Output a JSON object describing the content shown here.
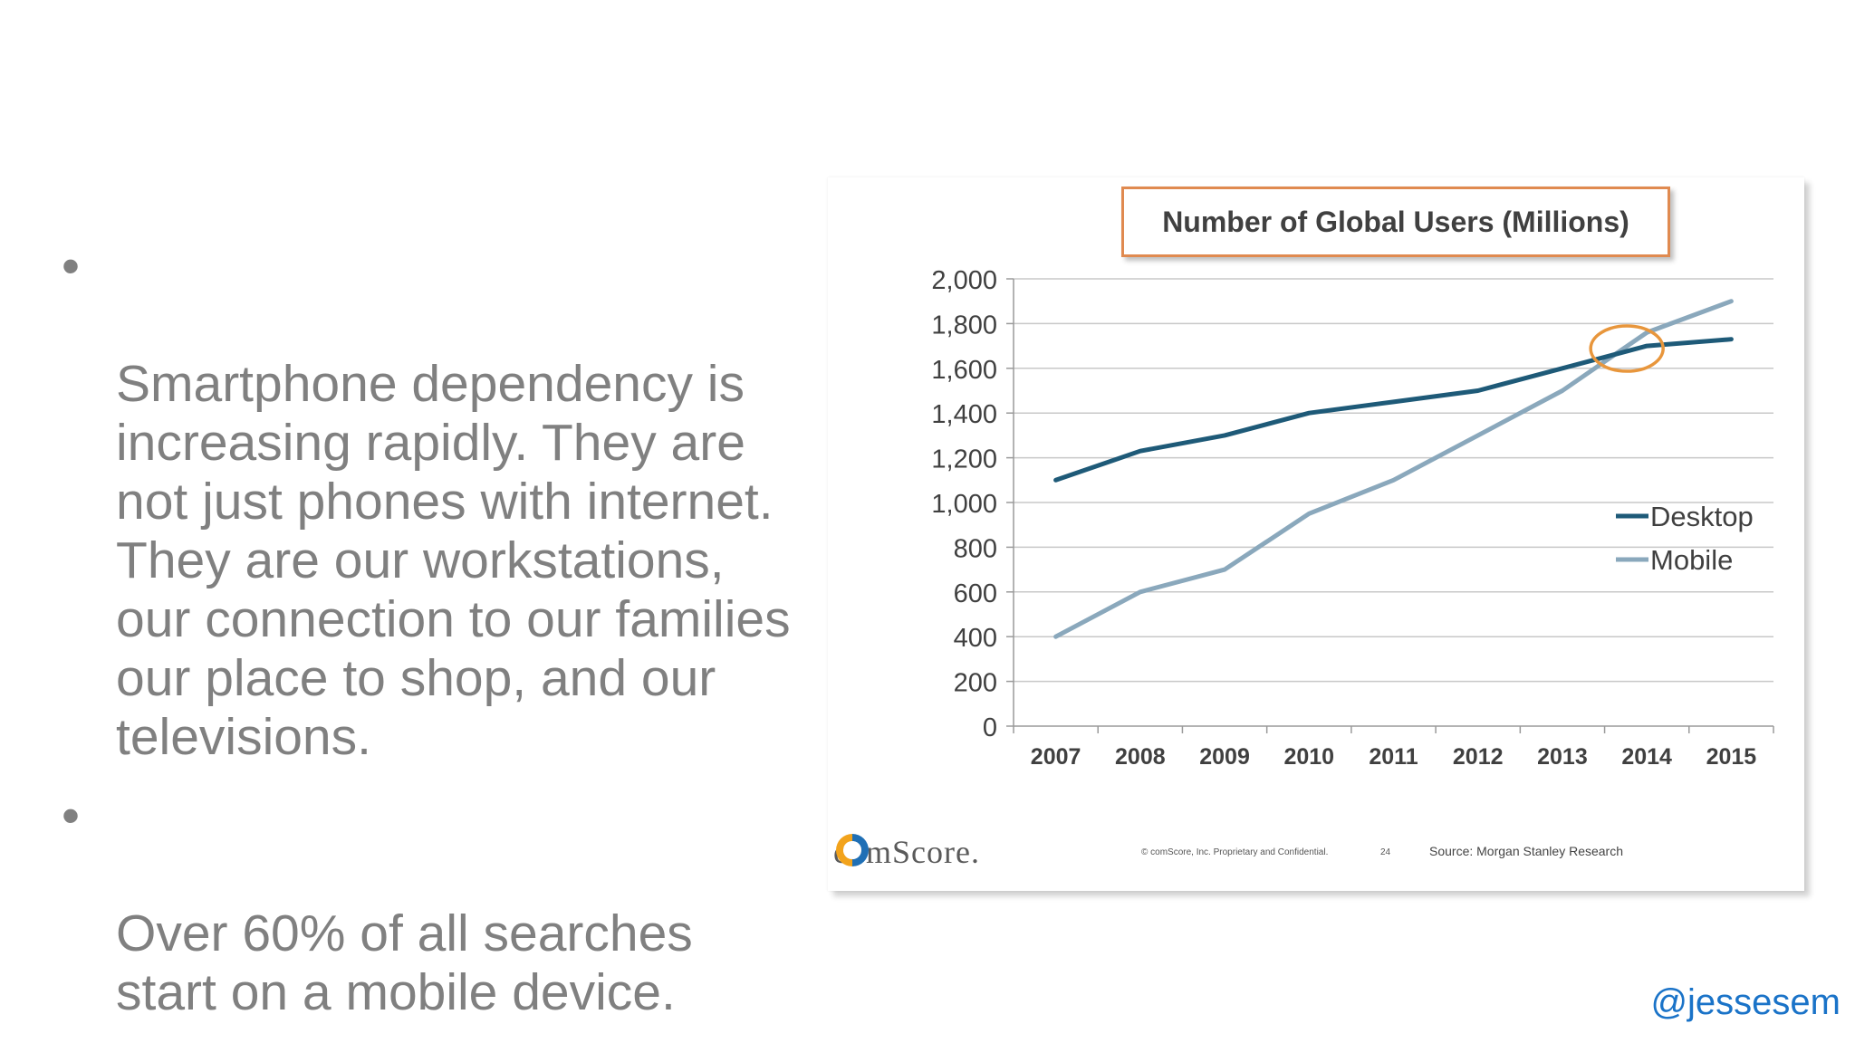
{
  "bullets": [
    "Smartphone dependency is\nincreasing rapidly. They are\nnot just phones with internet.\nThey are our workstations,\nour connection to our families\nour place to shop, and our\ntelevisions.",
    "Over 60% of all searches\nstart on a mobile device."
  ],
  "bullet_symbol": "•",
  "chart_data": {
    "type": "line",
    "title": "Number of Global Users (Millions)",
    "x": [
      "2007",
      "2008",
      "2009",
      "2010",
      "2011",
      "2012",
      "2013",
      "2014",
      "2015"
    ],
    "ylim": [
      0,
      2000
    ],
    "yticks": [
      "0",
      "200",
      "400",
      "600",
      "800",
      "1,000",
      "1,200",
      "1,400",
      "1,600",
      "1,800",
      "2,000"
    ],
    "ytick_values": [
      0,
      200,
      400,
      600,
      800,
      1000,
      1200,
      1400,
      1600,
      1800,
      2000
    ],
    "grid": true,
    "legend_placement": "right",
    "series": [
      {
        "name": "Desktop",
        "color": "#1e5a78",
        "values": [
          1100,
          1230,
          1300,
          1400,
          1450,
          1500,
          1600,
          1700,
          1730
        ]
      },
      {
        "name": "Mobile",
        "color": "#8aa8bc",
        "values": [
          400,
          600,
          700,
          950,
          1100,
          1300,
          1500,
          1760,
          1900
        ]
      }
    ],
    "annotation": {
      "type": "circle",
      "x": "2014",
      "y": 1680,
      "color": "#e8963c"
    }
  },
  "footer": {
    "logo_text": "comScore.",
    "copyright": "© comScore, Inc.  Proprietary and Confidential.",
    "page_number": "24",
    "source": "Source: Morgan Stanley Research"
  },
  "handle": "@jessesem"
}
